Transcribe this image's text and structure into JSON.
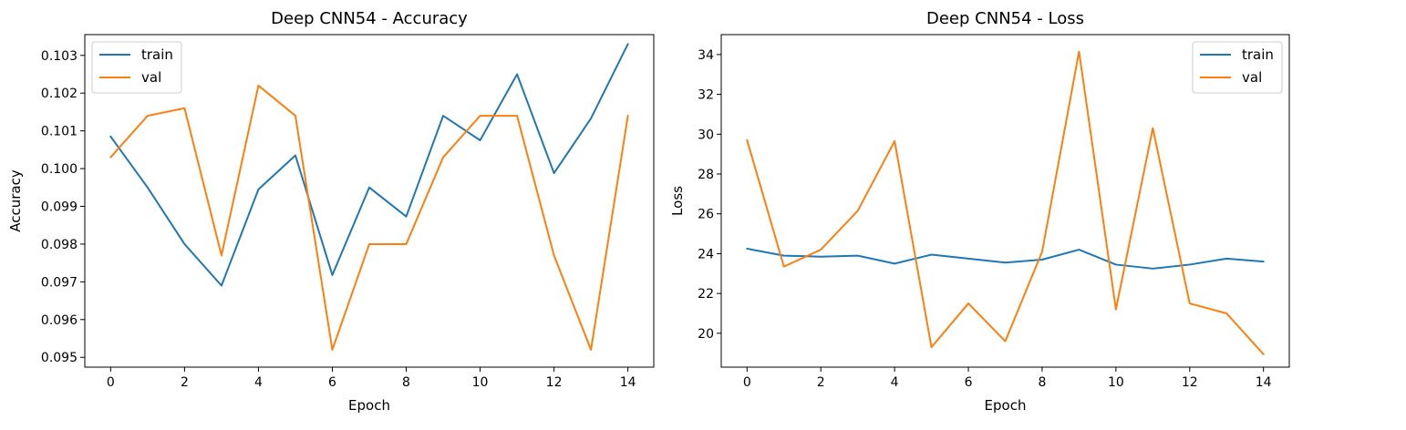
{
  "chart_data": [
    {
      "type": "line",
      "title": "Deep CNN54 - Accuracy",
      "xlabel": "Epoch",
      "ylabel": "Accuracy",
      "x": [
        0,
        1,
        2,
        3,
        4,
        5,
        6,
        7,
        8,
        9,
        10,
        11,
        12,
        13,
        14
      ],
      "xticks": [
        "0",
        "2",
        "4",
        "6",
        "8",
        "10",
        "12",
        "14"
      ],
      "yticks": [
        "0.095",
        "0.096",
        "0.097",
        "0.098",
        "0.099",
        "0.100",
        "0.101",
        "0.102",
        "0.103"
      ],
      "xlim": [
        -0.7,
        14.7
      ],
      "ylim": [
        0.09474,
        0.10355
      ],
      "legend": "top-left",
      "series": [
        {
          "name": "train",
          "color": "#1f77b4",
          "values": [
            0.10085,
            0.0995,
            0.098,
            0.0969,
            0.09945,
            0.10035,
            0.09718,
            0.0995,
            0.09873,
            0.1014,
            0.10075,
            0.1025,
            0.09988,
            0.10133,
            0.1033
          ]
        },
        {
          "name": "val",
          "color": "#ff7f0e",
          "values": [
            0.1003,
            0.1014,
            0.1016,
            0.0977,
            0.1022,
            0.1014,
            0.0952,
            0.098,
            0.098,
            0.1003,
            0.1014,
            0.1014,
            0.0977,
            0.0952,
            0.1014
          ]
        }
      ]
    },
    {
      "type": "line",
      "title": "Deep CNN54 - Loss",
      "xlabel": "Epoch",
      "ylabel": "Loss",
      "x": [
        0,
        1,
        2,
        3,
        4,
        5,
        6,
        7,
        8,
        9,
        10,
        11,
        12,
        13,
        14
      ],
      "xticks": [
        "0",
        "2",
        "4",
        "6",
        "8",
        "10",
        "12",
        "14"
      ],
      "yticks": [
        "20",
        "22",
        "24",
        "26",
        "28",
        "30",
        "32",
        "34"
      ],
      "xlim": [
        -0.7,
        14.7
      ],
      "ylim": [
        18.3,
        35.0
      ],
      "legend": "top-right",
      "series": [
        {
          "name": "train",
          "color": "#1f77b4",
          "values": [
            24.25,
            23.9,
            23.85,
            23.9,
            23.5,
            23.95,
            23.75,
            23.55,
            23.7,
            24.2,
            23.45,
            23.25,
            23.45,
            23.75,
            23.6
          ]
        },
        {
          "name": "val",
          "color": "#ff7f0e",
          "values": [
            29.7,
            23.35,
            24.2,
            26.15,
            29.65,
            19.3,
            21.5,
            19.6,
            24.1,
            34.15,
            21.2,
            30.3,
            21.5,
            21.0,
            18.95
          ]
        }
      ]
    }
  ]
}
